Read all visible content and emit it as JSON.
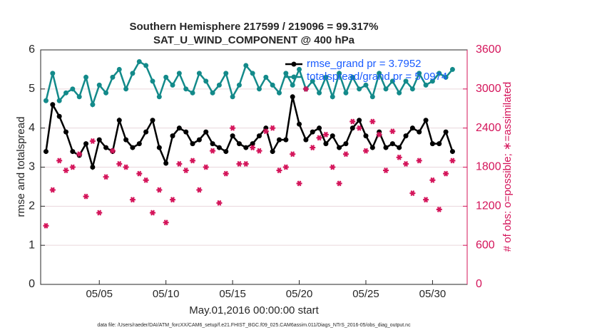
{
  "chart_data": {
    "type": "line",
    "title": "Southern Hemisphere 217599 / 219096 = 99.317%",
    "subtitle": "SAT_U_WIND_COMPONENT @ 400 hPa",
    "xlabel": "May.01,2016 00:00:00 start",
    "ylabel": "rmse and totalspread",
    "y2label": "# of obs: o=possible; ∗=assimilated",
    "footnote": "data file: /Users/raeder/DAI/ATM_forcXX/CAM6_setup/f.e21.FHIST_BGC.f09_025.CAM6assim.011/Diags_NTrS_2016-05/obs_diag_output.nc",
    "x": [
      1,
      1.5,
      2,
      2.5,
      3,
      3.5,
      4,
      4.5,
      5,
      5.5,
      6,
      6.5,
      7,
      7.5,
      8,
      8.5,
      9,
      9.5,
      10,
      10.5,
      11,
      11.5,
      12,
      12.5,
      13,
      13.5,
      14,
      14.5,
      15,
      15.5,
      16,
      16.5,
      17,
      17.5,
      18,
      18.5,
      19,
      19.5,
      20,
      20.5,
      21,
      21.5,
      22,
      22.5,
      23,
      23.5,
      24,
      24.5,
      25,
      25.5,
      26,
      26.5,
      27,
      27.5,
      28,
      28.5,
      29,
      29.5,
      30,
      30.5,
      31,
      31.5
    ],
    "xlim": [
      0.6,
      32.6
    ],
    "xticks": [
      {
        "value": 5,
        "label": "05/05"
      },
      {
        "value": 10,
        "label": "05/10"
      },
      {
        "value": 15,
        "label": "05/15"
      },
      {
        "value": 20,
        "label": "05/20"
      },
      {
        "value": 25,
        "label": "05/25"
      },
      {
        "value": 30,
        "label": "05/30"
      }
    ],
    "ylim": [
      0,
      6
    ],
    "yticks": [
      0,
      1,
      2,
      3,
      4,
      5,
      6
    ],
    "y2lim": [
      0,
      3600
    ],
    "y2ticks": [
      0,
      600,
      1200,
      1800,
      2400,
      3000,
      3600
    ],
    "grid": true,
    "legend": "upper right",
    "series": [
      {
        "name": "rmse_grand pr = 3.7952",
        "color": "#000000",
        "values": [
          3.4,
          4.6,
          4.3,
          3.9,
          3.4,
          3.3,
          3.6,
          3.0,
          3.7,
          3.5,
          3.4,
          4.2,
          3.7,
          3.5,
          3.6,
          3.9,
          4.2,
          3.5,
          3.1,
          3.8,
          4.0,
          3.9,
          3.6,
          3.7,
          3.9,
          3.6,
          3.5,
          3.4,
          3.8,
          3.6,
          3.5,
          3.6,
          3.8,
          4.0,
          3.4,
          3.7,
          3.7,
          4.8,
          4.1,
          3.7,
          3.9,
          4.0,
          3.6,
          3.8,
          3.5,
          3.6,
          4.0,
          4.2,
          3.8,
          3.5,
          3.9,
          3.5,
          3.6,
          3.5,
          3.8,
          4.0,
          3.9,
          4.2,
          3.6,
          3.6,
          3.9,
          3.4
        ]
      },
      {
        "name": "totalspread/grand pr = 5.0974",
        "color": "#138a8a",
        "values": [
          4.7,
          5.4,
          4.7,
          4.9,
          5.0,
          4.8,
          5.3,
          4.6,
          5.1,
          4.9,
          5.3,
          5.5,
          5.0,
          5.4,
          5.7,
          5.6,
          5.2,
          4.8,
          5.3,
          5.1,
          5.4,
          5.0,
          4.9,
          5.4,
          5.2,
          4.9,
          5.1,
          5.4,
          4.8,
          5.1,
          5.6,
          5.4,
          5.0,
          5.3,
          5.1,
          4.9,
          5.4,
          5.1,
          5.5,
          5.0,
          5.2,
          4.9,
          5.3,
          4.8,
          5.4,
          4.9,
          5.3,
          5.0,
          5.1,
          4.8,
          5.4,
          5.0,
          5.2,
          4.9,
          5.2,
          5.0,
          5.4,
          5.1,
          5.2,
          5.4,
          5.3,
          5.5
        ]
      },
      {
        "color": "#d4145a",
        "axis": "y2",
        "values": [
          900,
          1450,
          1900,
          1750,
          1800,
          2000,
          1350,
          2200,
          1100,
          1650,
          2050,
          1850,
          1800,
          1300,
          1700,
          1600,
          1100,
          1450,
          950,
          1300,
          1850,
          1750,
          1900,
          1450,
          1800,
          2050,
          1250,
          1700,
          2400,
          1850,
          1850,
          2100,
          2050,
          2350,
          2400,
          1750,
          1800,
          2000,
          1550,
          3000,
          2100,
          2250,
          2300,
          1800,
          1550,
          2000,
          2500,
          2400,
          2050,
          2500,
          2300,
          1750,
          2350,
          1950,
          1850,
          1400,
          1900,
          1300,
          1600,
          1150,
          1700,
          1900
        ]
      }
    ]
  }
}
